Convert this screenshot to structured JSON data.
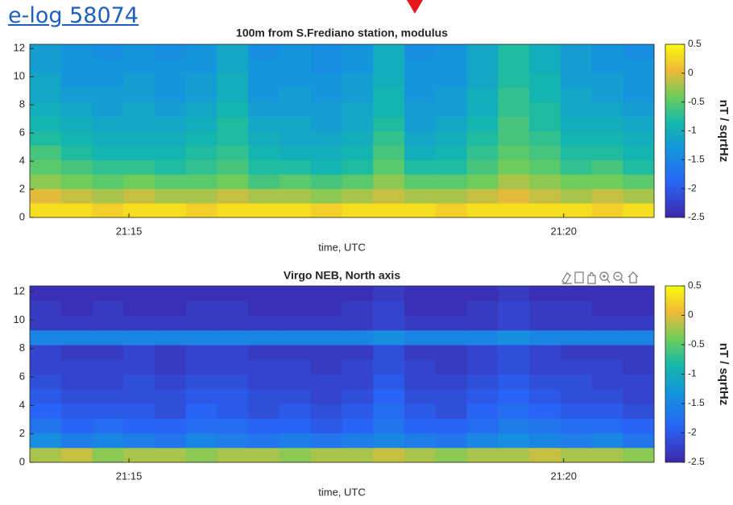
{
  "elog_link": "e-log 58074",
  "chart_data": [
    {
      "type": "heatmap",
      "title": "100m from S.Frediano station, modulus",
      "x_label": "time, UTC",
      "colorbar_label": "nT / sqrtHz",
      "xlim": [
        1273.86,
        1281.04
      ],
      "xticks": [
        {
          "value": 1275,
          "label": "21:15"
        },
        {
          "value": 1280,
          "label": "21:20"
        }
      ],
      "ylim": [
        0,
        12.3
      ],
      "yticks": [
        0,
        2,
        4,
        6,
        8,
        10,
        12
      ],
      "clim": [
        -2.5,
        0.5
      ],
      "cticks": [
        0.5,
        0,
        -0.5,
        -1,
        -1.5,
        -2,
        -2.5
      ],
      "colormap": "parula",
      "z": [
        [
          0.3,
          0.3,
          0.2,
          0.3,
          0.3,
          0.2,
          0.3,
          0.3,
          0.3,
          0.2,
          0.3,
          0.3,
          0.3,
          0.2,
          0.3,
          0.3,
          0.3,
          0.3,
          0.2,
          0.3
        ],
        [
          0,
          -0.1,
          -0.2,
          -0.1,
          -0.2,
          -0.2,
          -0.1,
          -0.2,
          -0.2,
          -0.3,
          -0.2,
          -0.1,
          -0.2,
          -0.2,
          -0.1,
          0,
          -0.1,
          -0.2,
          -0.1,
          -0.2
        ],
        [
          -0.3,
          -0.4,
          -0.5,
          -0.4,
          -0.5,
          -0.5,
          -0.4,
          -0.6,
          -0.5,
          -0.6,
          -0.5,
          -0.3,
          -0.5,
          -0.5,
          -0.4,
          -0.2,
          -0.3,
          -0.4,
          -0.4,
          -0.5
        ],
        [
          -0.5,
          -0.6,
          -0.7,
          -0.7,
          -0.8,
          -0.7,
          -0.6,
          -0.8,
          -0.8,
          -0.9,
          -0.8,
          -0.5,
          -0.8,
          -0.8,
          -0.6,
          -0.4,
          -0.5,
          -0.7,
          -0.6,
          -0.8
        ],
        [
          -0.6,
          -0.8,
          -0.9,
          -0.9,
          -0.9,
          -0.8,
          -0.7,
          -0.9,
          -1,
          -1,
          -0.9,
          -0.6,
          -1,
          -0.9,
          -0.7,
          -0.5,
          -0.6,
          -0.8,
          -0.8,
          -0.9
        ],
        [
          -0.8,
          -0.9,
          -1,
          -1,
          -1,
          -0.9,
          -0.8,
          -1,
          -1.1,
          -1.1,
          -1,
          -0.7,
          -1.1,
          -1,
          -0.8,
          -0.6,
          -0.7,
          -0.9,
          -0.9,
          -1
        ],
        [
          -0.9,
          -1,
          -1.1,
          -1.1,
          -1.1,
          -1,
          -0.8,
          -1.1,
          -1.1,
          -1.2,
          -1.1,
          -0.8,
          -1.2,
          -1.1,
          -0.9,
          -0.6,
          -0.8,
          -1,
          -1,
          -1.1
        ],
        [
          -1,
          -1.1,
          -1.2,
          -1.1,
          -1.2,
          -1.1,
          -0.9,
          -1.2,
          -1.2,
          -1.2,
          -1.1,
          -0.9,
          -1.2,
          -1.2,
          -1,
          -0.7,
          -0.8,
          -1.1,
          -1.1,
          -1.2
        ],
        [
          -1.1,
          -1.2,
          -1.2,
          -1.2,
          -1.3,
          -1.2,
          -1,
          -1.3,
          -1.2,
          -1.3,
          -1.2,
          -0.9,
          -1.3,
          -1.2,
          -1,
          -0.7,
          -0.9,
          -1.1,
          -1.2,
          -1.3
        ],
        [
          -1.1,
          -1.3,
          -1.3,
          -1.2,
          -1.3,
          -1.2,
          -1,
          -1.3,
          -1.3,
          -1.3,
          -1.2,
          -1,
          -1.3,
          -1.3,
          -1.1,
          -0.8,
          -0.9,
          -1.2,
          -1.2,
          -1.3
        ],
        [
          -1.2,
          -1.3,
          -1.3,
          -1.3,
          -1.3,
          -1.3,
          -1.1,
          -1.3,
          -1.3,
          -1.4,
          -1.3,
          -1,
          -1.3,
          -1.3,
          -1.1,
          -0.8,
          -1,
          -1.2,
          -1.3,
          -1.3
        ],
        [
          -1.2,
          -1.3,
          -1.4,
          -1.3,
          -1.4,
          -1.3,
          -1.1,
          -1.4,
          -1.3,
          -1.4,
          -1.3,
          -1,
          -1.4,
          -1.3,
          -1.1,
          -0.8,
          -1,
          -1.2,
          -1.3,
          -1.4
        ]
      ]
    },
    {
      "type": "heatmap",
      "title": "Virgo NEB, North axis",
      "x_label": "time, UTC",
      "colorbar_label": "nT / sqrtHz",
      "xlim": [
        1273.86,
        1281.04
      ],
      "xticks": [
        {
          "value": 1275,
          "label": "21:15"
        },
        {
          "value": 1280,
          "label": "21:20"
        }
      ],
      "ylim": [
        0,
        12.4
      ],
      "yticks": [
        0,
        2,
        4,
        6,
        8,
        10,
        12
      ],
      "clim": [
        -2.5,
        0.5
      ],
      "cticks": [
        0.5,
        0,
        -0.5,
        -1,
        -1.5,
        -2,
        -2.5
      ],
      "colormap": "parula",
      "z": [
        [
          -0.2,
          -0.1,
          -0.3,
          -0.2,
          -0.2,
          -0.3,
          -0.2,
          -0.2,
          -0.3,
          -0.2,
          -0.2,
          -0.1,
          -0.2,
          -0.3,
          -0.2,
          -0.2,
          -0.1,
          -0.2,
          -0.2,
          -0.3
        ],
        [
          -1.4,
          -1.6,
          -1.5,
          -1.6,
          -1.7,
          -1.5,
          -1.6,
          -1.7,
          -1.6,
          -1.7,
          -1.6,
          -1.5,
          -1.6,
          -1.7,
          -1.5,
          -1.4,
          -1.5,
          -1.6,
          -1.5,
          -1.7
        ],
        [
          -1.7,
          -1.9,
          -1.8,
          -1.9,
          -1.9,
          -1.8,
          -1.8,
          -1.9,
          -1.9,
          -2,
          -1.9,
          -1.7,
          -1.9,
          -1.9,
          -1.8,
          -1.6,
          -1.7,
          -1.8,
          -1.8,
          -1.9
        ],
        [
          -1.9,
          -2,
          -2,
          -2,
          -2.1,
          -1.9,
          -2,
          -2.1,
          -2,
          -2.1,
          -2,
          -1.8,
          -2,
          -2.1,
          -1.9,
          -1.8,
          -1.9,
          -2,
          -2,
          -2.1
        ],
        [
          -2,
          -2.1,
          -2.1,
          -2.1,
          -2.1,
          -2,
          -2,
          -2.1,
          -2.1,
          -2.2,
          -2.1,
          -1.9,
          -2.1,
          -2.1,
          -2,
          -1.9,
          -2,
          -2.1,
          -2.1,
          -2.2
        ],
        [
          -2.1,
          -2.2,
          -2.2,
          -2.1,
          -2.2,
          -2.1,
          -2.1,
          -2.2,
          -2.2,
          -2.2,
          -2.2,
          -2,
          -2.2,
          -2.2,
          -2.1,
          -2,
          -2.1,
          -2.1,
          -2.2,
          -2.2
        ],
        [
          -2.2,
          -2.2,
          -2.2,
          -2.2,
          -2.3,
          -2.2,
          -2.2,
          -2.2,
          -2.2,
          -2.3,
          -2.2,
          -2.1,
          -2.2,
          -2.3,
          -2.2,
          -2.1,
          -2.2,
          -2.2,
          -2.2,
          -2.3
        ],
        [
          -2.2,
          -2.3,
          -2.3,
          -2.2,
          -2.3,
          -2.2,
          -2.2,
          -2.3,
          -2.3,
          -2.3,
          -2.3,
          -2.1,
          -2.3,
          -2.3,
          -2.2,
          -2.1,
          -2.2,
          -2.3,
          -2.3,
          -2.3
        ],
        [
          -1.5,
          -1.5,
          -1.5,
          -1.5,
          -1.5,
          -1.5,
          -1.5,
          -1.5,
          -1.5,
          -1.5,
          -1.5,
          -1.4,
          -1.5,
          -1.5,
          -1.5,
          -1.4,
          -1.5,
          -1.5,
          -1.5,
          -1.5
        ],
        [
          -2.3,
          -2.3,
          -2.3,
          -2.3,
          -2.3,
          -2.3,
          -2.3,
          -2.3,
          -2.3,
          -2.3,
          -2.3,
          -2.2,
          -2.3,
          -2.3,
          -2.3,
          -2.2,
          -2.3,
          -2.3,
          -2.3,
          -2.3
        ],
        [
          -2.3,
          -2.4,
          -2.3,
          -2.4,
          -2.4,
          -2.3,
          -2.3,
          -2.4,
          -2.4,
          -2.4,
          -2.3,
          -2.2,
          -2.4,
          -2.4,
          -2.3,
          -2.2,
          -2.3,
          -2.3,
          -2.4,
          -2.4
        ],
        [
          -2.4,
          -2.4,
          -2.4,
          -2.4,
          -2.4,
          -2.4,
          -2.4,
          -2.4,
          -2.4,
          -2.4,
          -2.4,
          -2.3,
          -2.4,
          -2.4,
          -2.4,
          -2.3,
          -2.4,
          -2.4,
          -2.4,
          -2.4
        ]
      ]
    }
  ]
}
